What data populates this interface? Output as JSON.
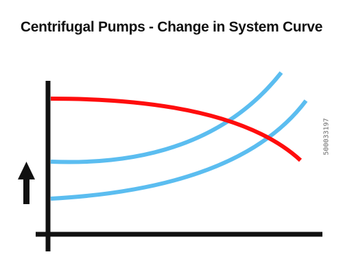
{
  "title": "Centrifugal Pumps - Change in System Curve",
  "side_text": "500033197",
  "colors": {
    "pump_curve": "#ff0d0d",
    "system_curve": "#5bbdf0",
    "axes": "#111111",
    "arrow": "#111111",
    "background": "#ffffff"
  },
  "icons": {
    "arrow": "up-arrow-icon"
  },
  "curves": [
    {
      "name": "pump-curve",
      "kind": "pump"
    },
    {
      "name": "system-curve-upper",
      "kind": "system"
    },
    {
      "name": "system-curve-lower",
      "kind": "system"
    }
  ]
}
